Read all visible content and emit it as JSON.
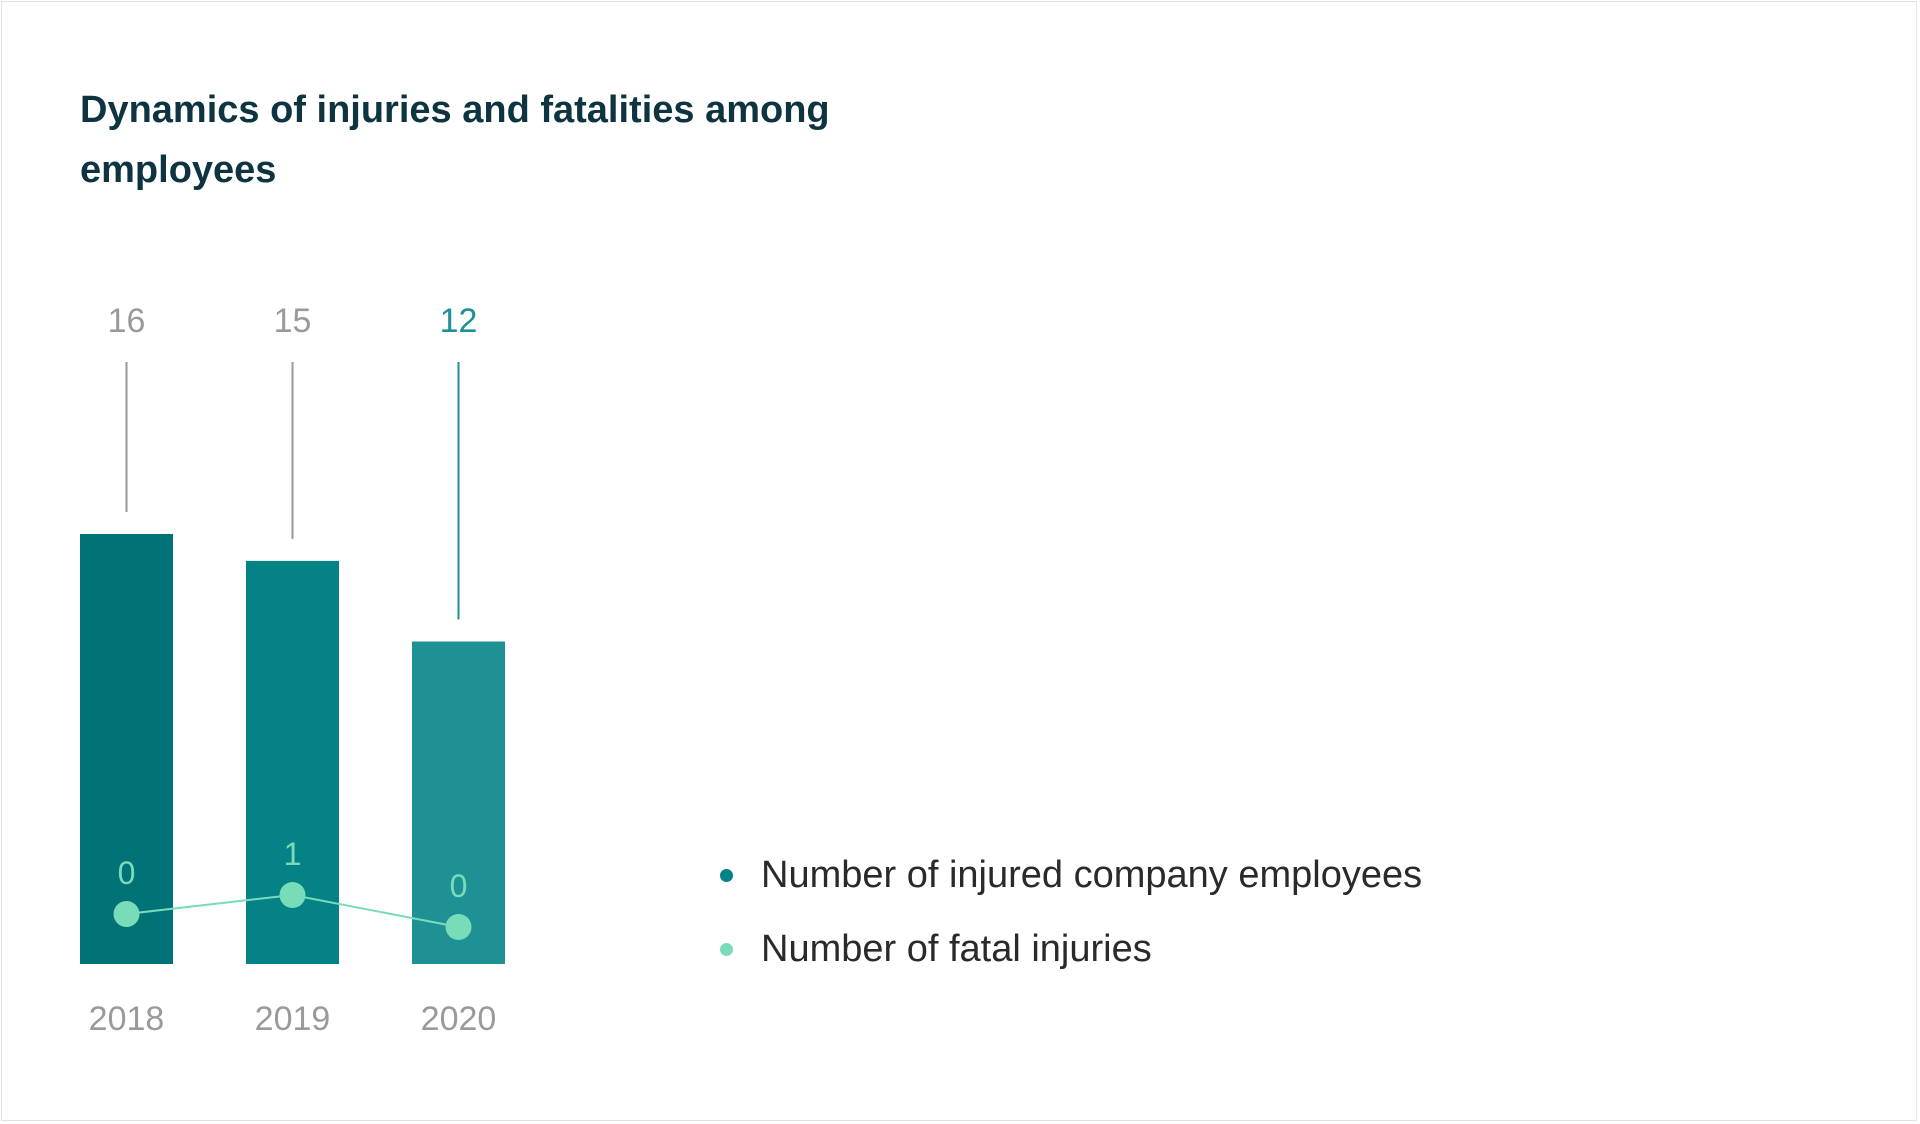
{
  "chart_data": {
    "type": "bar",
    "title": "Dynamics of injuries and fatalities among employees",
    "categories": [
      "2018",
      "2019",
      "2020"
    ],
    "series": [
      {
        "name": "Number of injured company employees",
        "type": "bar",
        "values": [
          16,
          15,
          12
        ],
        "colors": [
          "#017377",
          "#048286",
          "#1e9195"
        ],
        "label_colors": [
          "#9a9a9a",
          "#9a9a9a",
          "#1e9195"
        ]
      },
      {
        "name": "Number of fatal injuries",
        "type": "line",
        "values": [
          0,
          1,
          0
        ],
        "color": "#79dcb9"
      }
    ],
    "legend_position": "right",
    "grid": false,
    "xlabel": "",
    "ylabel": ""
  }
}
